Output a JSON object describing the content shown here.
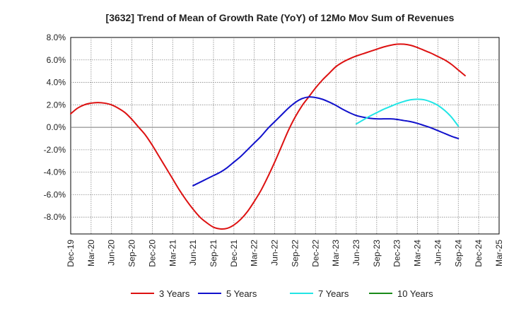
{
  "chart_data": {
    "type": "line",
    "title": "[3632]  Trend of Mean of Growth Rate (YoY) of 12Mo Mov Sum of Revenues",
    "xlabel": "",
    "ylabel": "",
    "ylim": [
      -9.5,
      8.0
    ],
    "yticks": [
      8.0,
      6.0,
      4.0,
      2.0,
      0.0,
      -2.0,
      -4.0,
      -6.0,
      -8.0
    ],
    "ytick_labels": [
      "8.0%",
      "6.0%",
      "4.0%",
      "2.0%",
      "0.0%",
      "-2.0%",
      "-4.0%",
      "-6.0%",
      "-8.0%"
    ],
    "x_start": "Dec-19",
    "x_months": 63,
    "xtick_labels": [
      "Dec-19",
      "Mar-20",
      "Jun-20",
      "Sep-20",
      "Dec-20",
      "Mar-21",
      "Jun-21",
      "Sep-21",
      "Dec-21",
      "Mar-22",
      "Jun-22",
      "Sep-22",
      "Dec-22",
      "Mar-23",
      "Jun-23",
      "Sep-23",
      "Dec-23",
      "Mar-24",
      "Jun-24",
      "Sep-24",
      "Dec-24",
      "Mar-25"
    ],
    "grid": true,
    "legend_position": "bottom",
    "series": [
      {
        "name": "3 Years",
        "color": "#dd1111",
        "start_index": 0,
        "values": [
          1.2,
          1.7,
          2.0,
          2.15,
          2.2,
          2.15,
          2.0,
          1.7,
          1.3,
          0.7,
          0.0,
          -0.7,
          -1.6,
          -2.6,
          -3.6,
          -4.6,
          -5.6,
          -6.5,
          -7.3,
          -8.0,
          -8.5,
          -8.9,
          -9.05,
          -9.0,
          -8.7,
          -8.2,
          -7.5,
          -6.6,
          -5.6,
          -4.4,
          -3.1,
          -1.7,
          -0.3,
          0.9,
          1.9,
          2.7,
          3.5,
          4.2,
          4.8,
          5.4,
          5.8,
          6.1,
          6.35,
          6.55,
          6.75,
          6.95,
          7.15,
          7.3,
          7.4,
          7.4,
          7.3,
          7.1,
          6.85,
          6.6,
          6.3,
          6.0,
          5.6,
          5.1,
          4.6
        ]
      },
      {
        "name": "5 Years",
        "color": "#1111cc",
        "start_index": 18,
        "values": [
          -5.2,
          -4.9,
          -4.6,
          -4.3,
          -4.0,
          -3.6,
          -3.1,
          -2.6,
          -2.0,
          -1.4,
          -0.8,
          -0.1,
          0.5,
          1.1,
          1.7,
          2.2,
          2.55,
          2.7,
          2.65,
          2.5,
          2.25,
          1.95,
          1.6,
          1.3,
          1.05,
          0.9,
          0.8,
          0.75,
          0.75,
          0.75,
          0.7,
          0.6,
          0.5,
          0.35,
          0.15,
          -0.05,
          -0.3,
          -0.55,
          -0.8,
          -1.0
        ]
      },
      {
        "name": "7 Years",
        "color": "#22e5e5",
        "start_index": 42,
        "values": [
          0.3,
          0.65,
          1.0,
          1.3,
          1.6,
          1.85,
          2.1,
          2.3,
          2.45,
          2.5,
          2.45,
          2.25,
          1.95,
          1.5,
          0.9,
          0.1
        ]
      },
      {
        "name": "10 Years",
        "color": "#1a8a1a",
        "start_index": 0,
        "values": []
      }
    ]
  }
}
